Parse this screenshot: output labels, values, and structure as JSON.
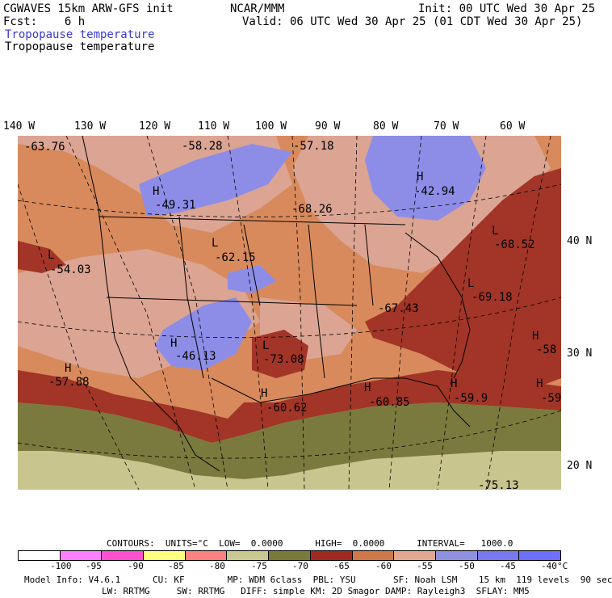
{
  "header": {
    "model": "CGWAVES 15km ARW-GFS init",
    "org": "NCAR/MMM",
    "init": "Init: 00 UTC Wed 30 Apr 25",
    "fcst": "Fcst:    6 h",
    "valid": "Valid: 06 UTC Wed 30 Apr 25 (01 CDT Wed 30 Apr 25)",
    "field_colored": "Tropopause temperature",
    "field_contour": "Tropopause temperature"
  },
  "longitude_labels": [
    "140 W",
    "130 W",
    "120 W",
    "110 W",
    "100 W",
    "90 W",
    "80 W",
    "70 W",
    "60 W"
  ],
  "latitude_labels": [
    "40 N",
    "30 N",
    "20 N"
  ],
  "map_labels": [
    {
      "text": "-63.76",
      "type": "value"
    },
    {
      "text": "-58.28",
      "type": "value"
    },
    {
      "text": "-57.18",
      "type": "value"
    },
    {
      "text": "H",
      "type": "high"
    },
    {
      "text": "-42.94",
      "type": "value"
    },
    {
      "text": "H",
      "type": "high"
    },
    {
      "text": "-49.31",
      "type": "value"
    },
    {
      "text": "-68.26",
      "type": "value"
    },
    {
      "text": "L",
      "type": "low"
    },
    {
      "text": "-68.52",
      "type": "value"
    },
    {
      "text": "L",
      "type": "low"
    },
    {
      "text": "-62.15",
      "type": "value"
    },
    {
      "text": "L",
      "type": "low"
    },
    {
      "text": "-54.03",
      "type": "value"
    },
    {
      "text": "L",
      "type": "low"
    },
    {
      "text": "-69.18",
      "type": "value"
    },
    {
      "text": "-67.43",
      "type": "value"
    },
    {
      "text": "H",
      "type": "high"
    },
    {
      "text": "-58",
      "type": "value"
    },
    {
      "text": "H",
      "type": "high"
    },
    {
      "text": "-46.13",
      "type": "value"
    },
    {
      "text": "L",
      "type": "low"
    },
    {
      "text": "-73.08",
      "type": "value"
    },
    {
      "text": "H",
      "type": "high"
    },
    {
      "text": "-57.88",
      "type": "value"
    },
    {
      "text": "H",
      "type": "high"
    },
    {
      "text": "-60.62",
      "type": "value"
    },
    {
      "text": "H",
      "type": "high"
    },
    {
      "text": "-60.85",
      "type": "value"
    },
    {
      "text": "H",
      "type": "high"
    },
    {
      "text": "-59.9",
      "type": "value"
    },
    {
      "text": "H",
      "type": "high"
    },
    {
      "text": "-59",
      "type": "value"
    },
    {
      "text": "-75.13",
      "type": "value"
    }
  ],
  "contour_info": "CONTOURS:  UNITS=°C  LOW=  0.0000      HIGH=  0.0000      INTERVAL=   1000.0",
  "legend": {
    "colors": [
      "#ffffff",
      "#ff80ff",
      "#ff50d0",
      "#ffff80",
      "#ff8080",
      "#c8c890",
      "#7a7a3a",
      "#a02820",
      "#d07848",
      "#e0a890",
      "#9090e0",
      "#7878f0",
      "#6e6eff"
    ],
    "labels": [
      "-100",
      "-95",
      "-90",
      "-85",
      "-80",
      "-75",
      "-70",
      "-65",
      "-60",
      "-55",
      "-50",
      "-45",
      "-40",
      "°C"
    ]
  },
  "footer": {
    "line1": "Model Info: V4.6.1      CU: KF        MP: WDM 6class  PBL: YSU       SF: Noah LSM    15 km  119 levels  90 sec",
    "line2": "LW: RRTMG     SW: RRTMG   DIFF: simple KM: 2D Smagor DAMP: Rayleigh3  SFLAY: MM5"
  }
}
